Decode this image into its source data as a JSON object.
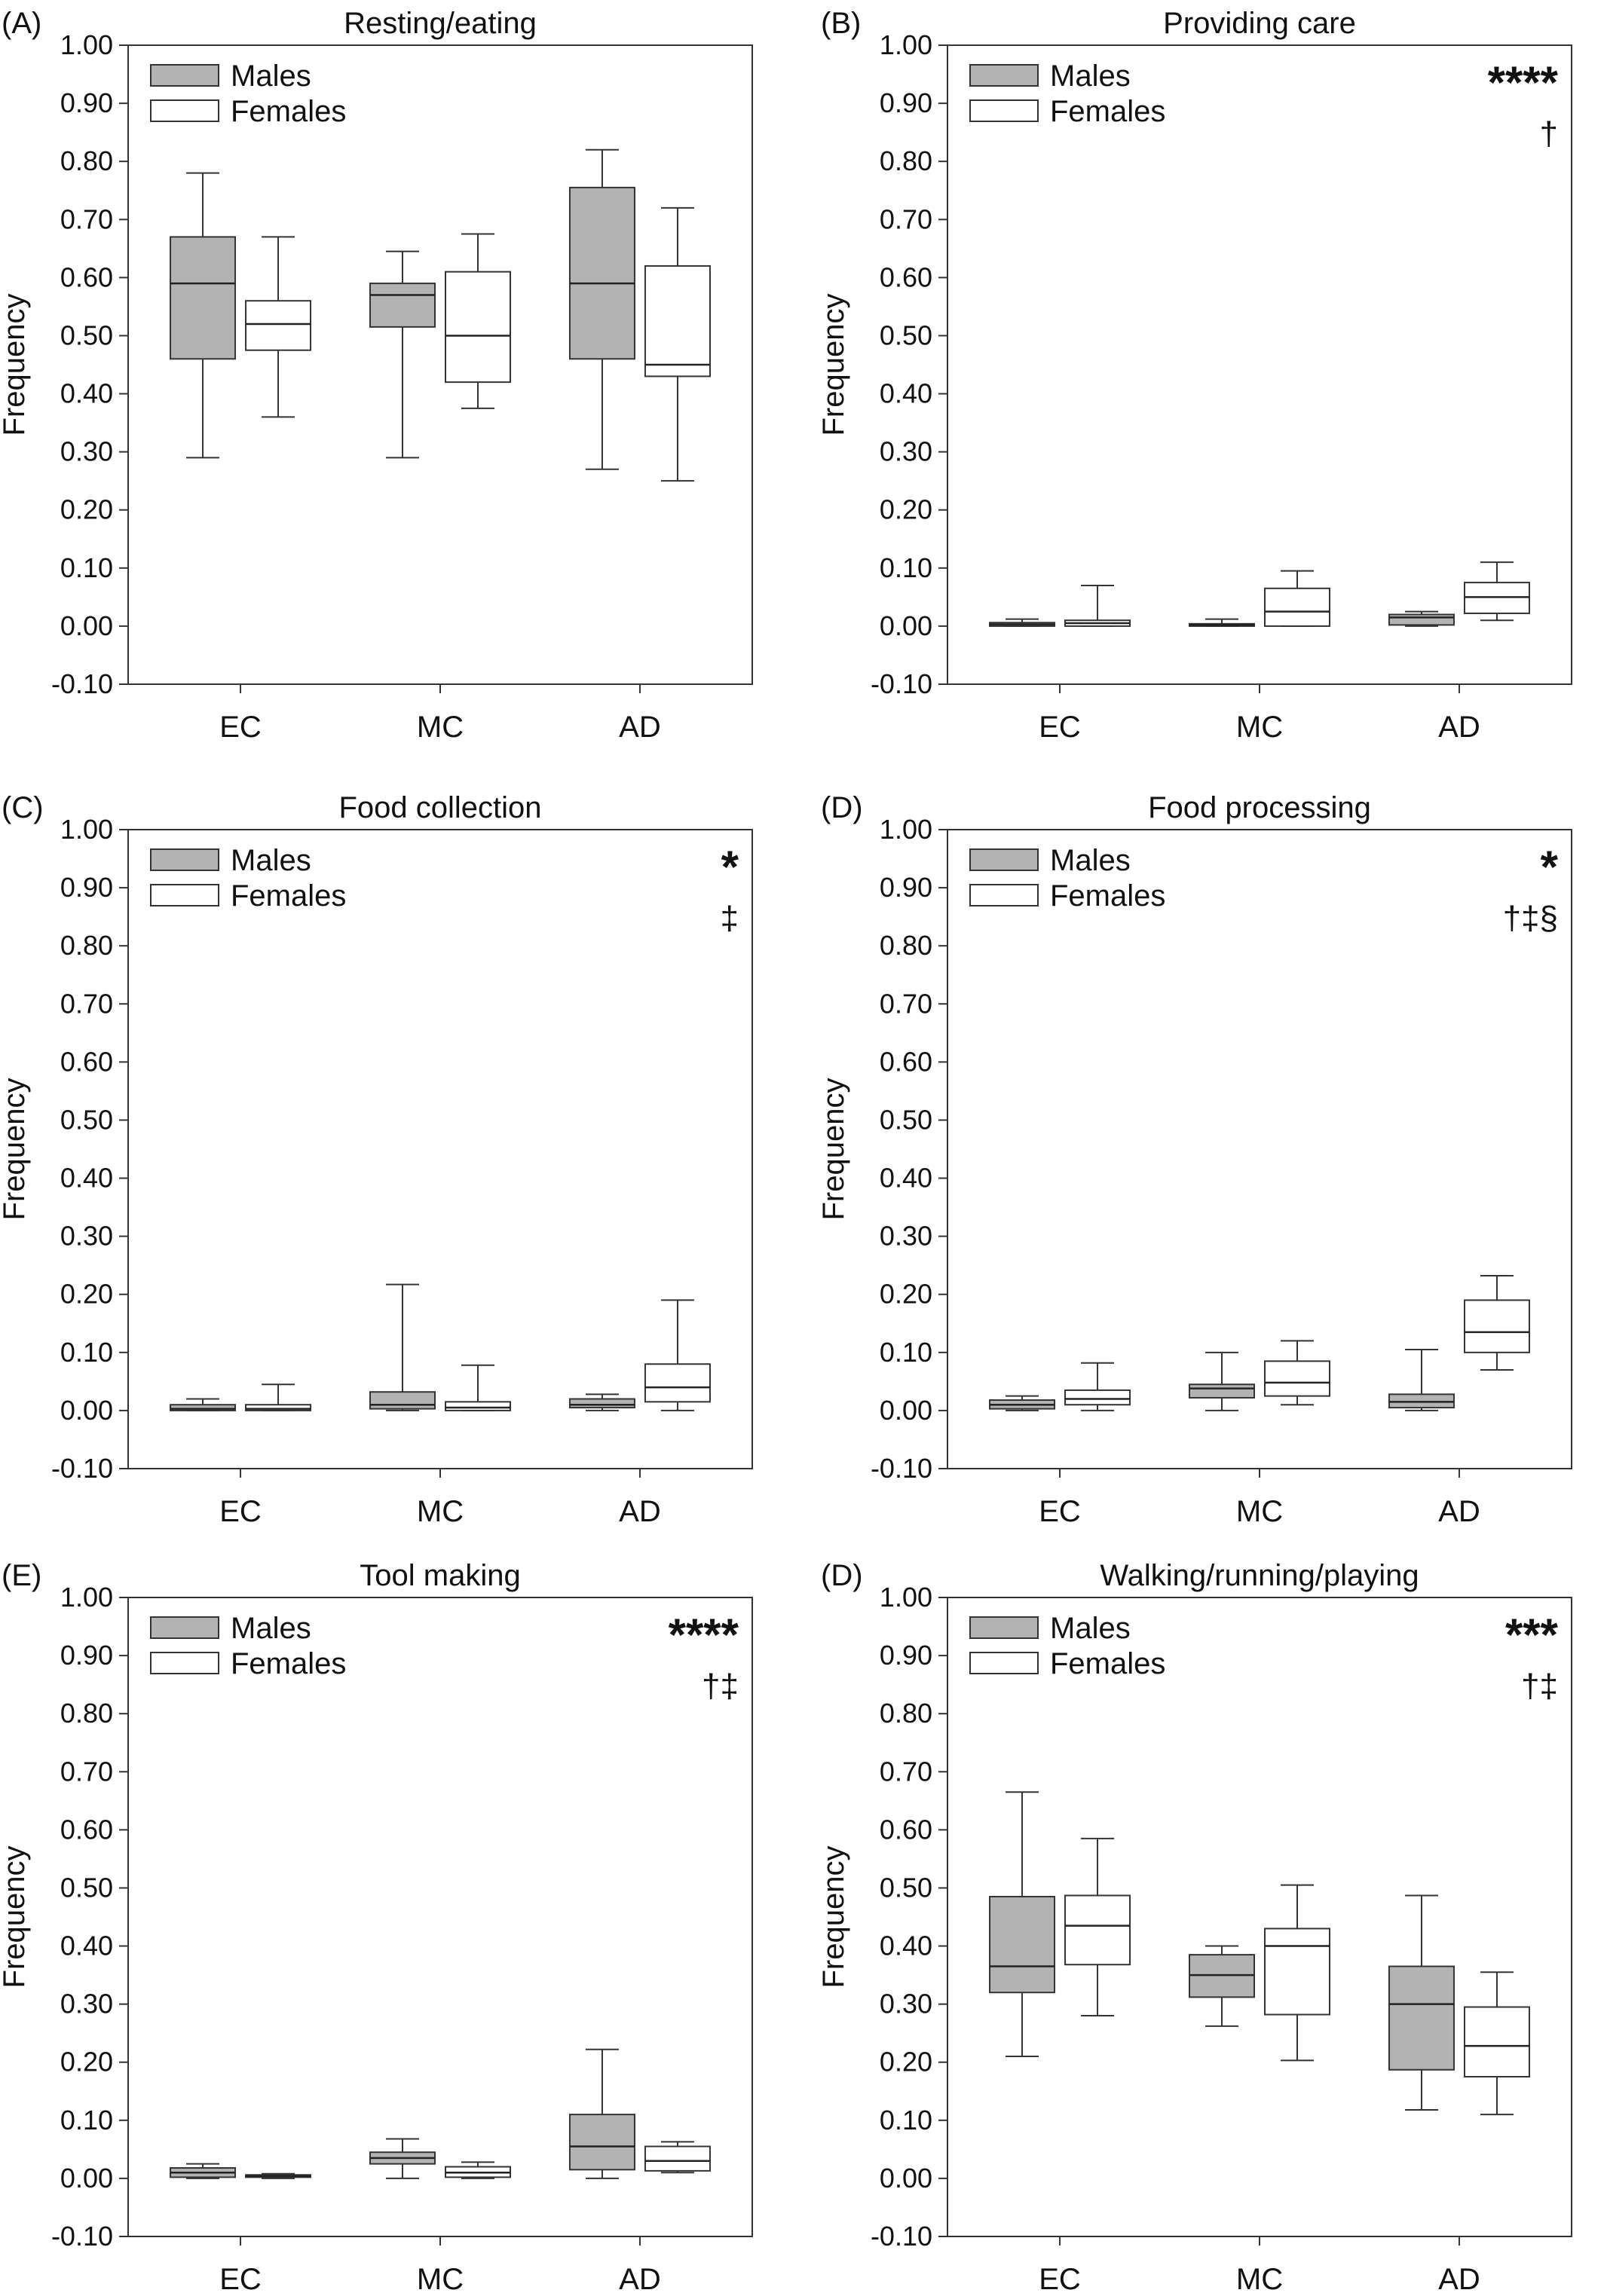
{
  "chart_data": [
    {
      "type": "box",
      "panel_letter": "(A)",
      "title": "Resting/eating",
      "ylabel": "Frequency",
      "ylim": [
        -0.1,
        1.0
      ],
      "yticks": [
        "-0.10",
        "0.00",
        "0.10",
        "0.20",
        "0.30",
        "0.40",
        "0.50",
        "0.60",
        "0.70",
        "0.80",
        "0.90",
        "1.00"
      ],
      "categories": [
        "EC",
        "MC",
        "AD"
      ],
      "legend": [
        "Males",
        "Females"
      ],
      "significance": {
        "stars": "",
        "marks": ""
      },
      "series": [
        {
          "name": "Males",
          "color": "#b3b3b3",
          "boxes": [
            {
              "min": 0.29,
              "q1": 0.46,
              "median": 0.59,
              "q3": 0.67,
              "max": 0.78
            },
            {
              "min": 0.29,
              "q1": 0.515,
              "median": 0.57,
              "q3": 0.59,
              "max": 0.645
            },
            {
              "min": 0.27,
              "q1": 0.46,
              "median": 0.59,
              "q3": 0.755,
              "max": 0.82
            }
          ]
        },
        {
          "name": "Females",
          "color": "#ffffff",
          "boxes": [
            {
              "min": 0.36,
              "q1": 0.475,
              "median": 0.52,
              "q3": 0.56,
              "max": 0.67
            },
            {
              "min": 0.375,
              "q1": 0.42,
              "median": 0.5,
              "q3": 0.61,
              "max": 0.675
            },
            {
              "min": 0.25,
              "q1": 0.43,
              "median": 0.45,
              "q3": 0.62,
              "max": 0.72
            }
          ]
        }
      ]
    },
    {
      "type": "box",
      "panel_letter": "(B)",
      "title": "Providing care",
      "ylabel": "Frequency",
      "ylim": [
        -0.1,
        1.0
      ],
      "yticks": [
        "-0.10",
        "0.00",
        "0.10",
        "0.20",
        "0.30",
        "0.40",
        "0.50",
        "0.60",
        "0.70",
        "0.80",
        "0.90",
        "1.00"
      ],
      "categories": [
        "EC",
        "MC",
        "AD"
      ],
      "legend": [
        "Males",
        "Females"
      ],
      "significance": {
        "stars": "****",
        "marks": "†"
      },
      "series": [
        {
          "name": "Males",
          "color": "#b3b3b3",
          "boxes": [
            {
              "min": 0.0,
              "q1": 0.0,
              "median": 0.003,
              "q3": 0.006,
              "max": 0.012
            },
            {
              "min": 0.0,
              "q1": 0.0,
              "median": 0.002,
              "q3": 0.004,
              "max": 0.012
            },
            {
              "min": 0.0,
              "q1": 0.002,
              "median": 0.015,
              "q3": 0.02,
              "max": 0.025
            }
          ]
        },
        {
          "name": "Females",
          "color": "#ffffff",
          "boxes": [
            {
              "min": 0.0,
              "q1": 0.0,
              "median": 0.005,
              "q3": 0.01,
              "max": 0.07
            },
            {
              "min": 0.0,
              "q1": 0.0,
              "median": 0.025,
              "q3": 0.065,
              "max": 0.095
            },
            {
              "min": 0.01,
              "q1": 0.022,
              "median": 0.05,
              "q3": 0.075,
              "max": 0.11
            }
          ]
        }
      ]
    },
    {
      "type": "box",
      "panel_letter": "(C)",
      "title": "Food collection",
      "ylabel": "Frequency",
      "ylim": [
        -0.1,
        1.0
      ],
      "yticks": [
        "-0.10",
        "0.00",
        "0.10",
        "0.20",
        "0.30",
        "0.40",
        "0.50",
        "0.60",
        "0.70",
        "0.80",
        "0.90",
        "1.00"
      ],
      "categories": [
        "EC",
        "MC",
        "AD"
      ],
      "legend": [
        "Males",
        "Females"
      ],
      "significance": {
        "stars": "*",
        "marks": "‡"
      },
      "series": [
        {
          "name": "Males",
          "color": "#b3b3b3",
          "boxes": [
            {
              "min": 0.0,
              "q1": 0.0,
              "median": 0.003,
              "q3": 0.01,
              "max": 0.02
            },
            {
              "min": 0.0,
              "q1": 0.003,
              "median": 0.01,
              "q3": 0.032,
              "max": 0.217
            },
            {
              "min": 0.0,
              "q1": 0.005,
              "median": 0.01,
              "q3": 0.02,
              "max": 0.028
            }
          ]
        },
        {
          "name": "Females",
          "color": "#ffffff",
          "boxes": [
            {
              "min": 0.0,
              "q1": 0.0,
              "median": 0.003,
              "q3": 0.01,
              "max": 0.045
            },
            {
              "min": 0.0,
              "q1": 0.0,
              "median": 0.005,
              "q3": 0.015,
              "max": 0.078
            },
            {
              "min": 0.0,
              "q1": 0.015,
              "median": 0.04,
              "q3": 0.08,
              "max": 0.19
            }
          ]
        }
      ]
    },
    {
      "type": "box",
      "panel_letter": "(D)",
      "title": "Food processing",
      "ylabel": "Frequency",
      "ylim": [
        -0.1,
        1.0
      ],
      "yticks": [
        "-0.10",
        "0.00",
        "0.10",
        "0.20",
        "0.30",
        "0.40",
        "0.50",
        "0.60",
        "0.70",
        "0.80",
        "0.90",
        "1.00"
      ],
      "categories": [
        "EC",
        "MC",
        "AD"
      ],
      "legend": [
        "Males",
        "Females"
      ],
      "significance": {
        "stars": "*",
        "marks": "†‡§"
      },
      "series": [
        {
          "name": "Males",
          "color": "#b3b3b3",
          "boxes": [
            {
              "min": 0.0,
              "q1": 0.003,
              "median": 0.01,
              "q3": 0.018,
              "max": 0.025
            },
            {
              "min": 0.0,
              "q1": 0.022,
              "median": 0.038,
              "q3": 0.045,
              "max": 0.1
            },
            {
              "min": 0.0,
              "q1": 0.005,
              "median": 0.015,
              "q3": 0.028,
              "max": 0.105
            }
          ]
        },
        {
          "name": "Females",
          "color": "#ffffff",
          "boxes": [
            {
              "min": 0.0,
              "q1": 0.01,
              "median": 0.02,
              "q3": 0.035,
              "max": 0.082
            },
            {
              "min": 0.01,
              "q1": 0.025,
              "median": 0.048,
              "q3": 0.085,
              "max": 0.12
            },
            {
              "min": 0.07,
              "q1": 0.1,
              "median": 0.135,
              "q3": 0.19,
              "max": 0.232
            }
          ]
        }
      ]
    },
    {
      "type": "box",
      "panel_letter": "(E)",
      "title": "Tool making",
      "ylabel": "Frequency",
      "ylim": [
        -0.1,
        1.0
      ],
      "yticks": [
        "-0.10",
        "0.00",
        "0.10",
        "0.20",
        "0.30",
        "0.40",
        "0.50",
        "0.60",
        "0.70",
        "0.80",
        "0.90",
        "1.00"
      ],
      "categories": [
        "EC",
        "MC",
        "AD"
      ],
      "legend": [
        "Males",
        "Females"
      ],
      "significance": {
        "stars": "****",
        "marks": "†‡"
      },
      "series": [
        {
          "name": "Males",
          "color": "#b3b3b3",
          "boxes": [
            {
              "min": 0.0,
              "q1": 0.002,
              "median": 0.01,
              "q3": 0.018,
              "max": 0.025
            },
            {
              "min": 0.0,
              "q1": 0.025,
              "median": 0.035,
              "q3": 0.045,
              "max": 0.068
            },
            {
              "min": 0.0,
              "q1": 0.015,
              "median": 0.055,
              "q3": 0.11,
              "max": 0.222
            }
          ]
        },
        {
          "name": "Females",
          "color": "#ffffff",
          "boxes": [
            {
              "min": 0.0,
              "q1": 0.002,
              "median": 0.004,
              "q3": 0.006,
              "max": 0.008
            },
            {
              "min": 0.0,
              "q1": 0.002,
              "median": 0.01,
              "q3": 0.02,
              "max": 0.028
            },
            {
              "min": 0.01,
              "q1": 0.013,
              "median": 0.03,
              "q3": 0.055,
              "max": 0.063
            }
          ]
        }
      ]
    },
    {
      "type": "box",
      "panel_letter": "(D)",
      "title": "Walking/running/playing",
      "ylabel": "Frequency",
      "ylim": [
        -0.1,
        1.0
      ],
      "yticks": [
        "-0.10",
        "0.00",
        "0.10",
        "0.20",
        "0.30",
        "0.40",
        "0.50",
        "0.60",
        "0.70",
        "0.80",
        "0.90",
        "1.00"
      ],
      "categories": [
        "EC",
        "MC",
        "AD"
      ],
      "legend": [
        "Males",
        "Females"
      ],
      "significance": {
        "stars": "***",
        "marks": "†‡"
      },
      "series": [
        {
          "name": "Males",
          "color": "#b3b3b3",
          "boxes": [
            {
              "min": 0.21,
              "q1": 0.32,
              "median": 0.365,
              "q3": 0.485,
              "max": 0.665
            },
            {
              "min": 0.262,
              "q1": 0.312,
              "median": 0.35,
              "q3": 0.385,
              "max": 0.4
            },
            {
              "min": 0.118,
              "q1": 0.187,
              "median": 0.3,
              "q3": 0.365,
              "max": 0.487
            }
          ]
        },
        {
          "name": "Females",
          "color": "#ffffff",
          "boxes": [
            {
              "min": 0.28,
              "q1": 0.368,
              "median": 0.435,
              "q3": 0.487,
              "max": 0.585
            },
            {
              "min": 0.203,
              "q1": 0.282,
              "median": 0.4,
              "q3": 0.43,
              "max": 0.505
            },
            {
              "min": 0.11,
              "q1": 0.175,
              "median": 0.228,
              "q3": 0.295,
              "max": 0.355
            }
          ]
        }
      ]
    }
  ]
}
